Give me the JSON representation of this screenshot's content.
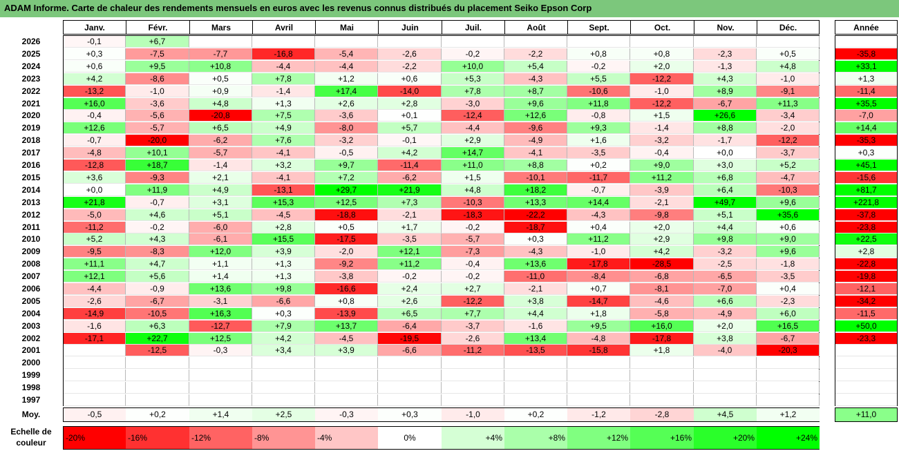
{
  "title": "ADAM Informe. Carte de chaleur des rendements mensuels en euros avec les revenus connus distribués du placement Seiko Epson Corp",
  "chart_data": {
    "type": "heatmap",
    "months": [
      "Janv.",
      "Févr.",
      "Mars",
      "Avril",
      "Mai",
      "Juin",
      "Juil.",
      "Août",
      "Sept.",
      "Oct.",
      "Nov.",
      "Déc."
    ],
    "year_header": "Année",
    "rows": [
      {
        "year": "2026",
        "values": [
          "-0,1",
          "+6,7",
          "",
          "",
          "",
          "",
          "",
          "",
          "",
          "",
          "",
          ""
        ],
        "annual": ""
      },
      {
        "year": "2025",
        "values": [
          "+0,3",
          "-7,5",
          "-7,7",
          "-16,8",
          "-5,4",
          "-2,6",
          "-0,2",
          "-2,2",
          "+0,8",
          "+0,8",
          "-2,3",
          "+0,5"
        ],
        "annual": "-35,8"
      },
      {
        "year": "2024",
        "values": [
          "+0,6",
          "+9,5",
          "+10,8",
          "-4,4",
          "-4,4",
          "-2,2",
          "+10,0",
          "+5,4",
          "-0,2",
          "+2,0",
          "-1,3",
          "+4,8"
        ],
        "annual": "+33,1"
      },
      {
        "year": "2023",
        "values": [
          "+4,2",
          "-8,6",
          "+0,5",
          "+7,8",
          "+1,2",
          "+0,6",
          "+5,3",
          "-4,3",
          "+5,5",
          "-12,2",
          "+4,3",
          "-1,0"
        ],
        "annual": "+1,3"
      },
      {
        "year": "2022",
        "values": [
          "-13,2",
          "-1,0",
          "+0,9",
          "-1,4",
          "+17,4",
          "-14,0",
          "+7,8",
          "+8,7",
          "-10,6",
          "-1,0",
          "+8,9",
          "-9,1"
        ],
        "annual": "-11,4"
      },
      {
        "year": "2021",
        "values": [
          "+16,0",
          "-3,6",
          "+4,8",
          "+1,3",
          "+2,6",
          "+2,8",
          "-3,0",
          "+9,6",
          "+11,8",
          "-12,2",
          "-6,7",
          "+11,3"
        ],
        "annual": "+35,5"
      },
      {
        "year": "2020",
        "values": [
          "-0,4",
          "-5,6",
          "-20,8",
          "+7,5",
          "-3,6",
          "+0,1",
          "-12,4",
          "+12,6",
          "-0,8",
          "+1,5",
          "+26,6",
          "-3,4"
        ],
        "annual": "-7,0"
      },
      {
        "year": "2019",
        "values": [
          "+12,6",
          "-5,7",
          "+6,5",
          "+4,9",
          "-8,0",
          "+5,7",
          "-4,4",
          "-9,6",
          "+9,3",
          "-1,4",
          "+8,8",
          "-2,0"
        ],
        "annual": "+14,4"
      },
      {
        "year": "2018",
        "values": [
          "-0,7",
          "-20,0",
          "-6,2",
          "+7,6",
          "-3,2",
          "-0,1",
          "+2,9",
          "-4,9",
          "+1,6",
          "-3,2",
          "-1,7",
          "-12,2"
        ],
        "annual": "-35,3"
      },
      {
        "year": "2017",
        "values": [
          "-4,8",
          "+10,1",
          "-5,7",
          "-4,1",
          "-0,5",
          "+4,2",
          "+14,7",
          "-4,1",
          "-3,5",
          "-0,4",
          "+0,0",
          "-3,7"
        ],
        "annual": "+0,3"
      },
      {
        "year": "2016",
        "values": [
          "-12,8",
          "+18,7",
          "-1,4",
          "+3,2",
          "+9,7",
          "-11,4",
          "+11,0",
          "+8,8",
          "+0,2",
          "+9,0",
          "+3,0",
          "+5,2"
        ],
        "annual": "+45,1"
      },
      {
        "year": "2015",
        "values": [
          "+3,6",
          "-9,3",
          "+2,1",
          "-4,1",
          "+7,2",
          "-6,2",
          "+1,5",
          "-10,1",
          "-11,7",
          "+11,2",
          "+6,8",
          "-4,7"
        ],
        "annual": "-15,6"
      },
      {
        "year": "2014",
        "values": [
          "+0,0",
          "+11,9",
          "+4,9",
          "-13,1",
          "+29,7",
          "+21,9",
          "+4,8",
          "+18,2",
          "-0,7",
          "-3,9",
          "+6,4",
          "-10,3"
        ],
        "annual": "+81,7"
      },
      {
        "year": "2013",
        "values": [
          "+21,8",
          "-0,7",
          "+3,1",
          "+15,3",
          "+12,5",
          "+7,3",
          "-10,3",
          "+13,3",
          "+14,4",
          "-2,1",
          "+49,7",
          "+9,6"
        ],
        "annual": "+221,8"
      },
      {
        "year": "2012",
        "values": [
          "-5,0",
          "+4,6",
          "+5,1",
          "-4,5",
          "-18,8",
          "-2,1",
          "-18,3",
          "-22,2",
          "-4,3",
          "-9,8",
          "+5,1",
          "+35,6"
        ],
        "annual": "-37,8"
      },
      {
        "year": "2011",
        "values": [
          "-11,2",
          "-0,2",
          "-6,0",
          "+2,8",
          "+0,5",
          "+1,7",
          "-0,2",
          "-18,7",
          "+0,4",
          "+2,0",
          "+4,4",
          "+0,6"
        ],
        "annual": "-23,8"
      },
      {
        "year": "2010",
        "values": [
          "+5,2",
          "+4,3",
          "-6,1",
          "+15,5",
          "-17,5",
          "-3,5",
          "-5,7",
          "+0,3",
          "+11,2",
          "+2,9",
          "+9,8",
          "+9,0"
        ],
        "annual": "+22,5"
      },
      {
        "year": "2009",
        "values": [
          "-9,5",
          "-8,3",
          "+12,0",
          "+3,9",
          "-2,0",
          "+12,1",
          "-7,3",
          "-4,3",
          "-1,0",
          "+4,2",
          "-3,2",
          "+9,6"
        ],
        "annual": "+2,8"
      },
      {
        "year": "2008",
        "values": [
          "+11,1",
          "+4,7",
          "+1,1",
          "+1,3",
          "-9,2",
          "+11,2",
          "-0,4",
          "+13,6",
          "-17,8",
          "-28,5",
          "-2,5",
          "-1,8"
        ],
        "annual": "-22,8"
      },
      {
        "year": "2007",
        "values": [
          "+12,1",
          "+5,6",
          "+1,4",
          "+1,3",
          "-3,8",
          "-0,2",
          "-0,2",
          "-11,0",
          "-8,4",
          "-6,8",
          "-6,5",
          "-3,5"
        ],
        "annual": "-19,8"
      },
      {
        "year": "2006",
        "values": [
          "-4,4",
          "-0,9",
          "+13,6",
          "+9,8",
          "-16,6",
          "+2,4",
          "+2,7",
          "-2,1",
          "+0,7",
          "-8,1",
          "-7,0",
          "+0,4"
        ],
        "annual": "-12,1"
      },
      {
        "year": "2005",
        "values": [
          "-2,6",
          "-6,7",
          "-3,1",
          "-6,6",
          "+0,8",
          "+2,6",
          "-12,2",
          "+3,8",
          "-14,7",
          "-4,6",
          "+6,6",
          "-2,3"
        ],
        "annual": "-34,2"
      },
      {
        "year": "2004",
        "values": [
          "-14,9",
          "-10,5",
          "+16,3",
          "+0,3",
          "-13,9",
          "+6,5",
          "+7,7",
          "+4,4",
          "+1,8",
          "-5,8",
          "-4,9",
          "+6,0"
        ],
        "annual": "-11,5"
      },
      {
        "year": "2003",
        "values": [
          "-1,6",
          "+6,3",
          "-12,7",
          "+7,9",
          "+13,7",
          "-6,4",
          "-3,7",
          "-1,6",
          "+9,5",
          "+16,0",
          "+2,0",
          "+16,5"
        ],
        "annual": "+50,0"
      },
      {
        "year": "2002",
        "values": [
          "-17,1",
          "+22,7",
          "+12,5",
          "+4,2",
          "-4,5",
          "-19,5",
          "-2,6",
          "+13,4",
          "-4,8",
          "-17,8",
          "+3,8",
          "-6,7"
        ],
        "annual": "-23,3"
      },
      {
        "year": "2001",
        "values": [
          "",
          "-12,5",
          "-0,3",
          "+3,4",
          "+3,9",
          "-6,6",
          "-11,2",
          "-13,5",
          "-15,8",
          "+1,8",
          "-4,0",
          "-20,3"
        ],
        "annual": ""
      },
      {
        "year": "2000",
        "values": [
          "",
          "",
          "",
          "",
          "",
          "",
          "",
          "",
          "",
          "",
          "",
          ""
        ],
        "annual": ""
      },
      {
        "year": "1999",
        "values": [
          "",
          "",
          "",
          "",
          "",
          "",
          "",
          "",
          "",
          "",
          "",
          ""
        ],
        "annual": ""
      },
      {
        "year": "1998",
        "values": [
          "",
          "",
          "",
          "",
          "",
          "",
          "",
          "",
          "",
          "",
          "",
          ""
        ],
        "annual": ""
      },
      {
        "year": "1997",
        "values": [
          "",
          "",
          "",
          "",
          "",
          "",
          "",
          "",
          "",
          "",
          "",
          ""
        ],
        "annual": ""
      }
    ],
    "average": {
      "label": "Moy.",
      "values": [
        "-0,5",
        "+0,2",
        "+1,4",
        "+2,5",
        "-0,3",
        "+0,3",
        "-1,0",
        "+0,2",
        "-1,2",
        "-2,8",
        "+4,5",
        "+1,2"
      ],
      "annual": "+11,0"
    },
    "legend": {
      "label_line1": "Echelle de",
      "label_line2": "couleur",
      "steps": [
        "-20%",
        "-16%",
        "-12%",
        "-8%",
        "-4%",
        "0%",
        "+4%",
        "+8%",
        "+12%",
        "+16%",
        "+20%",
        "+24%"
      ],
      "step_values": [
        -20,
        -16,
        -12,
        -8,
        -4,
        0,
        4,
        8,
        12,
        16,
        20,
        24
      ]
    },
    "colors": {
      "title_bg": "#7cc77c",
      "negative_max": "#ff0000",
      "positive_max": "#00ff00",
      "neutral": "#ffffff"
    }
  }
}
